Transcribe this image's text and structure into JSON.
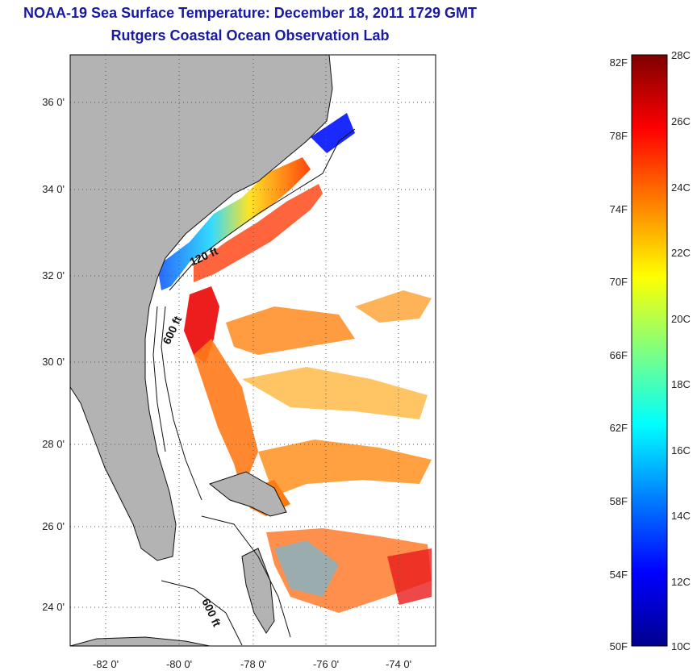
{
  "title": "NOAA-19 Sea Surface Temperature:  December 18, 2011 1729 GMT",
  "subtitle": "Rutgers Coastal Ocean Observation Lab",
  "map": {
    "lat_ticks": [
      {
        "value": 36,
        "label": "36 0'"
      },
      {
        "value": 34,
        "label": "34 0'"
      },
      {
        "value": 32,
        "label": "32 0'"
      },
      {
        "value": 30,
        "label": "30 0'"
      },
      {
        "value": 28,
        "label": "28 0'"
      },
      {
        "value": 26,
        "label": "26 0'"
      },
      {
        "value": 24,
        "label": "24 0'"
      }
    ],
    "lon_ticks": [
      {
        "value": -82,
        "label": "-82 0'"
      },
      {
        "value": -80,
        "label": "-80 0'"
      },
      {
        "value": -78,
        "label": "-78 0'"
      },
      {
        "value": -76,
        "label": "-76 0'"
      },
      {
        "value": -74,
        "label": "-74 0'"
      }
    ],
    "lon_range": [
      -83,
      -73
    ],
    "lat_range": [
      23,
      37
    ],
    "isobath_labels": [
      "120 ft",
      "600 ft",
      "600 ft"
    ],
    "land_color": "#b3b3b3"
  },
  "colorbar": {
    "celsius_labels": [
      "28C",
      "26C",
      "24C",
      "22C",
      "20C",
      "18C",
      "16C",
      "14C",
      "12C",
      "10C"
    ],
    "fahrenheit_labels": [
      "82F",
      "78F",
      "74F",
      "70F",
      "66F",
      "62F",
      "58F",
      "54F",
      "50F"
    ],
    "range_c": [
      10,
      28
    ],
    "colormap": "jet"
  }
}
